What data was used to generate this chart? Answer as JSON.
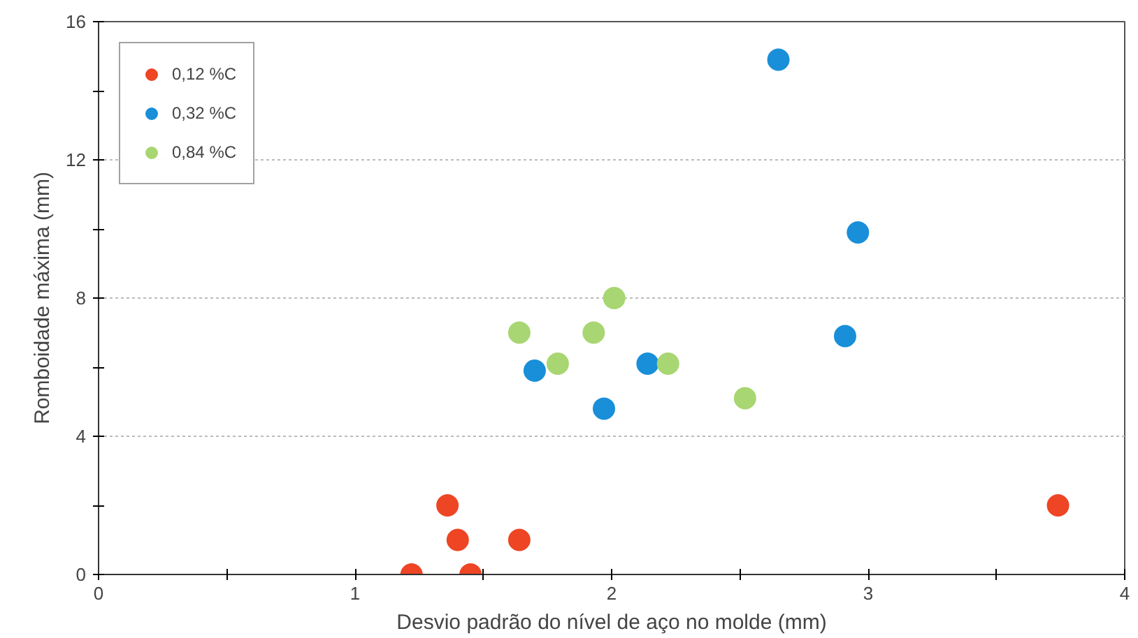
{
  "chart_data": {
    "type": "scatter",
    "xlabel": "Desvio padrão do nível de aço no molde (mm)",
    "ylabel": "Romboidade máxima (mm)",
    "xlim": [
      0,
      4
    ],
    "ylim": [
      0,
      16
    ],
    "xticks": [
      0,
      {
        "value": 0.5,
        "label": null
      },
      1,
      {
        "value": 1.5,
        "label": null
      },
      2,
      {
        "value": 2.5,
        "label": null
      },
      3,
      {
        "value": 3.5,
        "label": null
      },
      4
    ],
    "yticks": [
      0,
      {
        "value": 2,
        "label": null
      },
      4,
      {
        "value": 6,
        "label": null
      },
      8,
      {
        "value": 10,
        "label": null
      },
      12,
      {
        "value": 14,
        "label": null
      },
      16
    ],
    "grid": "y",
    "legend": "top left",
    "marker": "circle",
    "series": [
      {
        "name": "0,12 %C",
        "color": "#ee4524",
        "x": [
          1.22,
          1.45,
          1.36,
          1.4,
          1.64,
          3.74
        ],
        "values": [
          0,
          0,
          2,
          1,
          1,
          2
        ]
      },
      {
        "name": "0,32 %C",
        "color": "#1a8fd9",
        "x": [
          2.65,
          2.96,
          2.91,
          2.14,
          1.97,
          1.7
        ],
        "values": [
          14.9,
          9.9,
          6.9,
          6.1,
          4.8,
          5.9
        ]
      },
      {
        "name": "0,84 %C",
        "color": "#a8d672",
        "x": [
          1.64,
          1.79,
          1.93,
          2.01,
          2.22,
          2.52
        ],
        "values": [
          7.0,
          6.1,
          7.0,
          8.0,
          6.1,
          5.1
        ]
      }
    ]
  }
}
